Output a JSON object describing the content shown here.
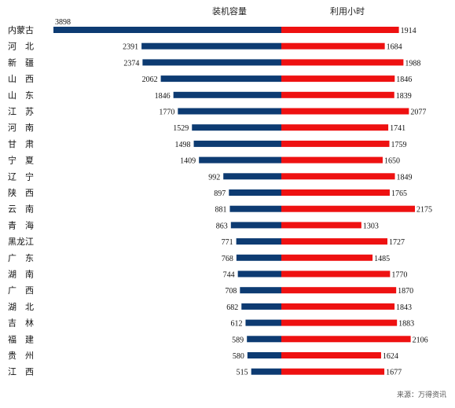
{
  "chart_data": {
    "type": "bar",
    "orientation": "horizontal-diverging",
    "categories": [
      "内蒙古",
      "河　北",
      "新　疆",
      "山　西",
      "山　东",
      "江　苏",
      "河　南",
      "甘　肃",
      "宁　夏",
      "辽　宁",
      "陕　西",
      "云　南",
      "青　海",
      "黑龙江",
      "广　东",
      "湖　南",
      "广　西",
      "湖　北",
      "吉　林",
      "福　建",
      "贵　州",
      "江　西"
    ],
    "series": [
      {
        "name": "装机容量",
        "color": "#0d3b72",
        "values": [
          3898,
          2391,
          2374,
          2062,
          1846,
          1770,
          1529,
          1498,
          1409,
          992,
          897,
          881,
          863,
          771,
          768,
          744,
          708,
          682,
          612,
          589,
          580,
          515
        ]
      },
      {
        "name": "利用小时",
        "color": "#ee1111",
        "values": [
          1914,
          1684,
          1988,
          1846,
          1839,
          2077,
          1741,
          1759,
          1650,
          1849,
          1765,
          2175,
          1303,
          1727,
          1485,
          1770,
          1870,
          1843,
          1883,
          2106,
          1624,
          1677
        ]
      }
    ],
    "source_note": "来源：万得资讯"
  }
}
